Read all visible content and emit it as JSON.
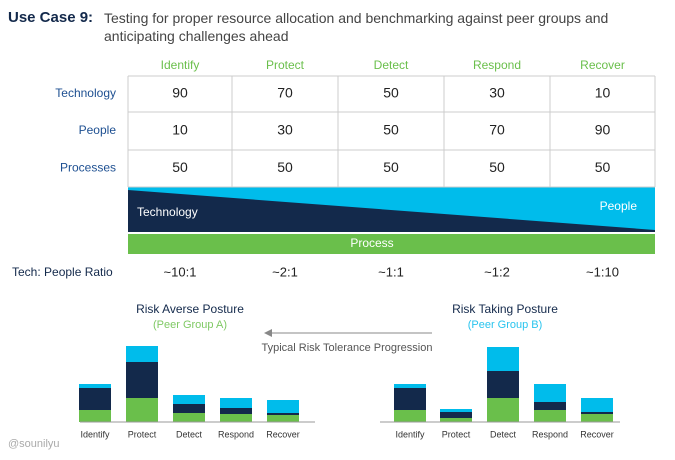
{
  "header": {
    "label": "Use Case 9:",
    "title": "Testing for proper resource allocation and benchmarking against peer groups and anticipating challenges ahead"
  },
  "table": {
    "columns": [
      "Identify",
      "Protect",
      "Detect",
      "Respond",
      "Recover"
    ],
    "rows": [
      {
        "label": "Technology",
        "values": [
          90,
          70,
          50,
          30,
          10
        ]
      },
      {
        "label": "People",
        "values": [
          10,
          30,
          50,
          70,
          90
        ]
      },
      {
        "label": "Processes",
        "values": [
          50,
          50,
          50,
          50,
          50
        ]
      }
    ]
  },
  "band": {
    "technology": "Technology",
    "people": "People",
    "process": "Process"
  },
  "ratio": {
    "label": "Tech: People Ratio",
    "values": [
      "~10:1",
      "~2:1",
      "~1:1",
      "~1:2",
      "~1:10"
    ]
  },
  "progression": "Typical Risk Tolerance Progression",
  "posture_charts": [
    {
      "title": "Risk Averse Posture",
      "subtitle": "(Peer Group A)",
      "subtitle_color": "#7fc964",
      "categories": [
        "Identify",
        "Protect",
        "Detect",
        "Respond",
        "Recover"
      ],
      "series": [
        {
          "color": "#6abf4b",
          "values": [
            12,
            24,
            9,
            8,
            7
          ]
        },
        {
          "color": "#13294b",
          "values": [
            22,
            36,
            9,
            6,
            2
          ]
        },
        {
          "color": "#00bceb",
          "values": [
            4,
            16,
            9,
            10,
            13
          ]
        }
      ]
    },
    {
      "title": "Risk Taking Posture",
      "subtitle": "(Peer Group B)",
      "subtitle_color": "#29c4ee",
      "categories": [
        "Identify",
        "Protect",
        "Detect",
        "Respond",
        "Recover"
      ],
      "series": [
        {
          "color": "#6abf4b",
          "values": [
            12,
            4,
            24,
            12,
            8
          ]
        },
        {
          "color": "#13294b",
          "values": [
            22,
            6,
            27,
            8,
            2
          ]
        },
        {
          "color": "#00bceb",
          "values": [
            4,
            3,
            24,
            18,
            14
          ]
        }
      ]
    }
  ],
  "credit": "@sounilyu"
}
